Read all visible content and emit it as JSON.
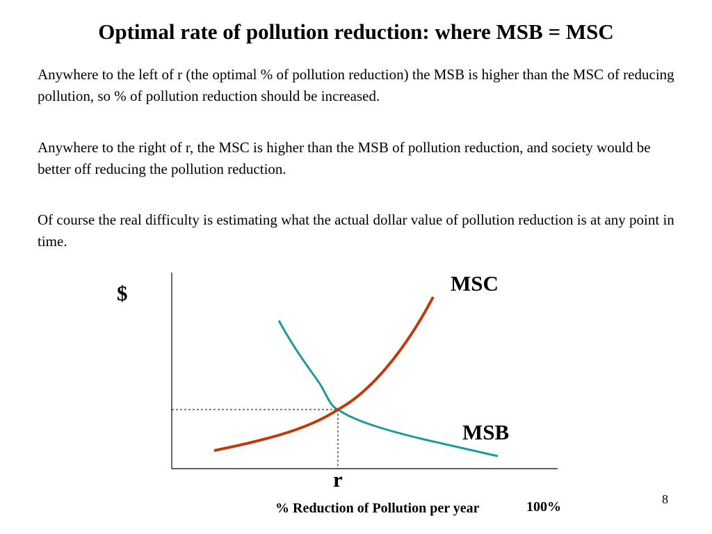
{
  "slide": {
    "title": "Optimal rate of pollution reduction: where MSB = MSC",
    "paragraphs": [
      "Anywhere to the left of r (the optimal % of pollution reduction) the MSB is higher than the MSC of reducing pollution, so % of pollution reduction should be increased.",
      "Anywhere to the right of r, the MSC is higher than the MSB of pollution reduction, and society would be better off reducing the pollution reduction.",
      "Of course the real difficulty is estimating what the actual dollar value of pollution reduction  is at any point in time."
    ],
    "page_number": "8"
  },
  "diagram": {
    "y_axis_label": "$",
    "x_axis_label": "% Reduction of Pollution per year",
    "x_axis_end_label": "100%",
    "intersection_label": "r",
    "curves": {
      "msc": {
        "label": "MSC",
        "color": "#c0390b"
      },
      "msb": {
        "label": "MSB",
        "color": "#1a9a9a"
      }
    }
  }
}
